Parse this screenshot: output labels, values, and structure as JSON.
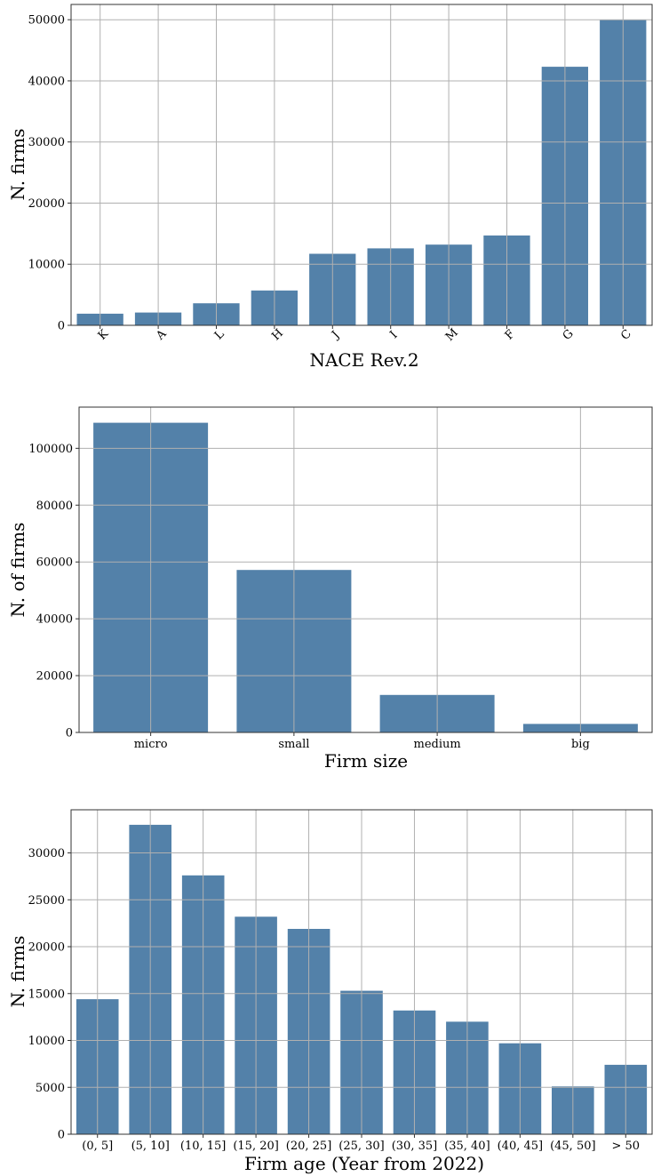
{
  "colors": {
    "bar": "#5381A9",
    "grid": "#b0b0b0",
    "frame": "#333333"
  },
  "chart_data": [
    {
      "type": "bar",
      "categories": [
        "K",
        "A",
        "L",
        "H",
        "J",
        "I",
        "M",
        "F",
        "G",
        "C"
      ],
      "values": [
        1900,
        2100,
        3600,
        5700,
        11700,
        12600,
        13200,
        14700,
        42300,
        50000
      ],
      "xlabel": "NACE Rev.2",
      "ylabel": "N. firms",
      "ylim": [
        0,
        52500
      ],
      "yticks": [
        0,
        10000,
        20000,
        30000,
        40000,
        50000
      ],
      "ytick_labels": [
        "0",
        "10000",
        "20000",
        "30000",
        "40000",
        "50000"
      ],
      "xtick_rotation": "45 degrees",
      "grid": true
    },
    {
      "type": "bar",
      "categories": [
        "micro",
        "small",
        "medium",
        "big"
      ],
      "values": [
        109000,
        57200,
        13200,
        3000
      ],
      "xlabel": "Firm size",
      "ylabel": "N. of firms",
      "ylim": [
        0,
        114500
      ],
      "yticks": [
        0,
        20000,
        40000,
        60000,
        80000,
        100000
      ],
      "ytick_labels": [
        "0",
        "20000",
        "40000",
        "60000",
        "80000",
        "100000"
      ],
      "grid": true
    },
    {
      "type": "bar",
      "categories": [
        "(0, 5]",
        "(5, 10]",
        "(10, 15]",
        "(15, 20]",
        "(20, 25]",
        "(25, 30]",
        "(30, 35]",
        "(35, 40]",
        "(40, 45]",
        "(45, 50]",
        "> 50"
      ],
      "values": [
        14400,
        33000,
        27600,
        23200,
        21900,
        15300,
        13200,
        12000,
        9700,
        5100,
        7400
      ],
      "xlabel": "Firm age (Year from 2022)",
      "ylabel": "N. firms",
      "ylim": [
        0,
        34600
      ],
      "yticks": [
        0,
        5000,
        10000,
        15000,
        20000,
        25000,
        30000
      ],
      "ytick_labels": [
        "0",
        "5000",
        "10000",
        "15000",
        "20000",
        "25000",
        "30000"
      ],
      "grid": true
    }
  ]
}
